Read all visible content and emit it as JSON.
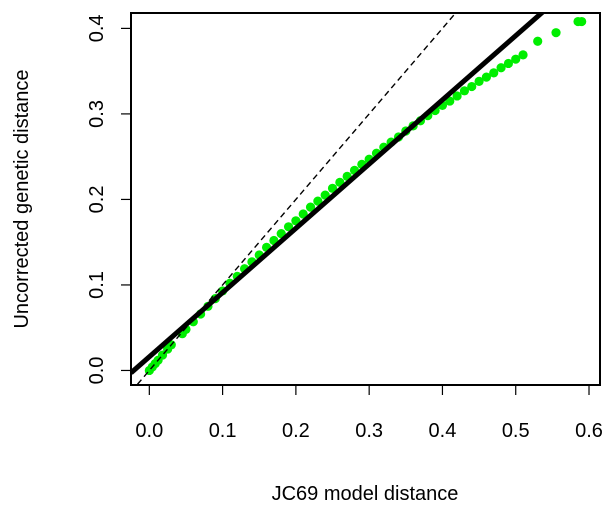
{
  "chart_data": {
    "type": "scatter",
    "xlabel": "JC69 model distance",
    "ylabel": "Uncorrected genetic distance",
    "xlim": [
      -0.025,
      0.615
    ],
    "ylim": [
      -0.017,
      0.418
    ],
    "x_ticks": [
      0.0,
      0.1,
      0.2,
      0.3,
      0.4,
      0.5,
      0.6
    ],
    "x_tick_labels": [
      "0.0",
      "0.1",
      "0.2",
      "0.3",
      "0.4",
      "0.5",
      "0.6"
    ],
    "y_ticks": [
      0.0,
      0.1,
      0.2,
      0.3,
      0.4
    ],
    "y_tick_labels": [
      "0.0",
      "0.1",
      "0.2",
      "0.3",
      "0.4"
    ],
    "grid": false,
    "legend": "none",
    "point_color": "#00ee00",
    "points": [
      [
        0.0,
        0.0
      ],
      [
        0.004,
        0.004
      ],
      [
        0.008,
        0.008
      ],
      [
        0.012,
        0.012
      ],
      [
        0.018,
        0.018
      ],
      [
        0.025,
        0.025
      ],
      [
        0.03,
        0.03
      ],
      [
        0.045,
        0.043
      ],
      [
        0.05,
        0.048
      ],
      [
        0.06,
        0.057
      ],
      [
        0.07,
        0.066
      ],
      [
        0.08,
        0.075
      ],
      [
        0.09,
        0.084
      ],
      [
        0.1,
        0.093
      ],
      [
        0.11,
        0.102
      ],
      [
        0.12,
        0.11
      ],
      [
        0.13,
        0.119
      ],
      [
        0.14,
        0.127
      ],
      [
        0.15,
        0.135
      ],
      [
        0.16,
        0.144
      ],
      [
        0.17,
        0.152
      ],
      [
        0.18,
        0.16
      ],
      [
        0.19,
        0.168
      ],
      [
        0.2,
        0.175
      ],
      [
        0.21,
        0.183
      ],
      [
        0.22,
        0.191
      ],
      [
        0.23,
        0.198
      ],
      [
        0.24,
        0.205
      ],
      [
        0.25,
        0.213
      ],
      [
        0.26,
        0.22
      ],
      [
        0.27,
        0.227
      ],
      [
        0.28,
        0.234
      ],
      [
        0.29,
        0.241
      ],
      [
        0.3,
        0.247
      ],
      [
        0.31,
        0.254
      ],
      [
        0.32,
        0.261
      ],
      [
        0.33,
        0.267
      ],
      [
        0.34,
        0.273
      ],
      [
        0.35,
        0.28
      ],
      [
        0.36,
        0.286
      ],
      [
        0.37,
        0.292
      ],
      [
        0.38,
        0.298
      ],
      [
        0.39,
        0.304
      ],
      [
        0.4,
        0.31
      ],
      [
        0.41,
        0.315
      ],
      [
        0.42,
        0.321
      ],
      [
        0.43,
        0.327
      ],
      [
        0.44,
        0.332
      ],
      [
        0.45,
        0.338
      ],
      [
        0.46,
        0.343
      ],
      [
        0.47,
        0.348
      ],
      [
        0.48,
        0.354
      ],
      [
        0.49,
        0.359
      ],
      [
        0.5,
        0.364
      ],
      [
        0.51,
        0.369
      ],
      [
        0.53,
        0.385
      ],
      [
        0.555,
        0.395
      ],
      [
        0.585,
        0.408
      ],
      [
        0.59,
        0.408
      ]
    ],
    "lines": [
      {
        "type": "regression",
        "style": "solid",
        "color": "#000000",
        "intercept": 0.016,
        "slope": 0.751
      },
      {
        "type": "identity",
        "style": "dashed",
        "color": "#000000",
        "intercept": 0.0,
        "slope": 1.0
      }
    ]
  }
}
